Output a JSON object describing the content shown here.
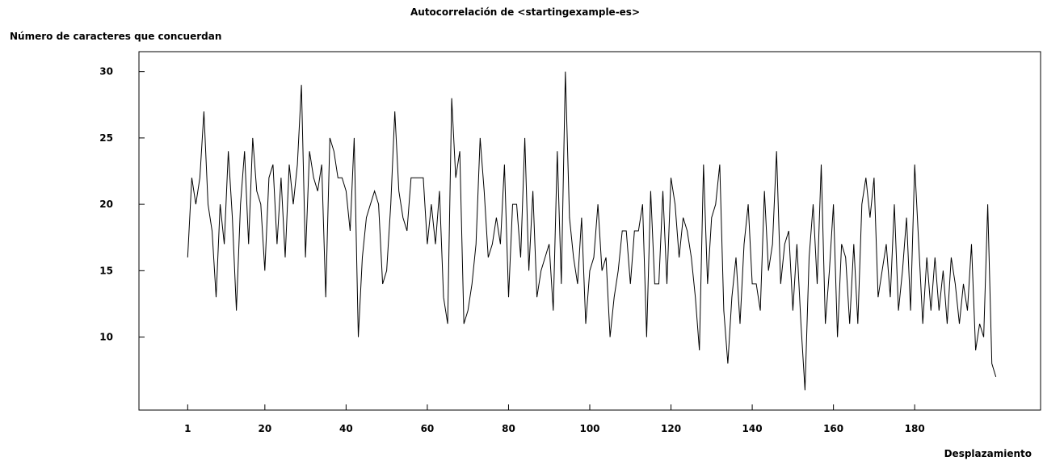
{
  "chart_data": {
    "type": "line",
    "title": "Autocorrelación de <startingexample-es>",
    "ylabel": "Número de caracteres que concuerdan",
    "xlabel": "Desplazamiento",
    "xlim": [
      -11,
      211
    ],
    "ylim": [
      4.5,
      31.5
    ],
    "x_ticks": [
      1,
      20,
      40,
      60,
      80,
      100,
      120,
      140,
      160,
      180
    ],
    "y_ticks": [
      10,
      15,
      20,
      25,
      30
    ],
    "grid": false,
    "legend": "none",
    "line_color": "#000000",
    "x_start": 1,
    "values": [
      16,
      22,
      20,
      22,
      27,
      20,
      18,
      13,
      20,
      17,
      24,
      19,
      12,
      20,
      24,
      17,
      25,
      21,
      20,
      15,
      22,
      23,
      17,
      22,
      16,
      23,
      20,
      23,
      29,
      16,
      24,
      22,
      21,
      23,
      13,
      25,
      24,
      22,
      22,
      21,
      18,
      25,
      10,
      16,
      19,
      20,
      21,
      20,
      14,
      15,
      20,
      27,
      21,
      19,
      18,
      22,
      22,
      22,
      22,
      17,
      20,
      17,
      21,
      13,
      11,
      28,
      22,
      24,
      11,
      12,
      14,
      17,
      25,
      21,
      16,
      17,
      19,
      17,
      23,
      13,
      20,
      20,
      16,
      25,
      15,
      21,
      13,
      15,
      16,
      17,
      12,
      24,
      14,
      30,
      19,
      16,
      14,
      19,
      11,
      15,
      16,
      20,
      15,
      16,
      10,
      13,
      15,
      18,
      18,
      14,
      18,
      18,
      20,
      10,
      21,
      14,
      14,
      21,
      14,
      22,
      20,
      16,
      19,
      18,
      16,
      13,
      9,
      23,
      14,
      19,
      20,
      23,
      12,
      8,
      13,
      16,
      11,
      17,
      20,
      14,
      14,
      12,
      21,
      15,
      17,
      24,
      14,
      17,
      18,
      12,
      17,
      11,
      6,
      16,
      20,
      14,
      23,
      11,
      15,
      20,
      10,
      17,
      16,
      11,
      17,
      11,
      20,
      22,
      19,
      22,
      13,
      15,
      17,
      13,
      20,
      12,
      15,
      19,
      12,
      23,
      17,
      11,
      16,
      12,
      16,
      12,
      15,
      11,
      16,
      14,
      11,
      14,
      12,
      17,
      9,
      11,
      10,
      20,
      8,
      7
    ]
  }
}
